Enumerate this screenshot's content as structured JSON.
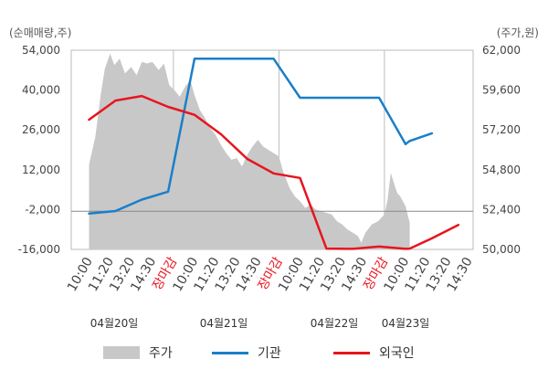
{
  "chart_data": {
    "type": "line",
    "left_unit_label": "(순매매량,주)",
    "right_unit_label": "(주가,원)",
    "y_left": {
      "ticks": [
        "54,000",
        "40,000",
        "26,000",
        "12,000",
        "-2,000",
        "-16,000"
      ],
      "min": -16000,
      "max": 54000
    },
    "y_right": {
      "ticks": [
        "62,000",
        "59,600",
        "57,200",
        "54,800",
        "52,400",
        "50,000"
      ],
      "min": 50000,
      "max": 62000
    },
    "x_labels": [
      "10:00",
      "11:20",
      "13:20",
      "14:30",
      "장마감",
      "10:00",
      "11:20",
      "13:20",
      "14:30",
      "장마감",
      "10:00",
      "11:20",
      "13:20",
      "14:30",
      "장마감",
      "10:00",
      "11:20",
      "13:20",
      "14:30"
    ],
    "day_labels": [
      "04월20일",
      "04월21일",
      "04월22일",
      "04월23일"
    ],
    "zero_line_value": 52300,
    "series": [
      {
        "name": "주가",
        "axis": "right",
        "kind": "area",
        "color": "#c8c8c8",
        "points": [
          [
            0.0,
            55100
          ],
          [
            0.3,
            56800
          ],
          [
            0.55,
            59300
          ],
          [
            0.75,
            60900
          ],
          [
            1.0,
            61800
          ],
          [
            1.2,
            61100
          ],
          [
            1.45,
            61500
          ],
          [
            1.7,
            60600
          ],
          [
            2.0,
            61000
          ],
          [
            2.25,
            60500
          ],
          [
            2.5,
            61300
          ],
          [
            2.75,
            61200
          ],
          [
            3.0,
            61300
          ],
          [
            3.3,
            60800
          ],
          [
            3.55,
            61200
          ],
          [
            3.8,
            59900
          ],
          [
            4.05,
            59600
          ],
          [
            4.3,
            59200
          ],
          [
            4.55,
            59800
          ],
          [
            4.8,
            60200
          ],
          [
            5.0,
            59300
          ],
          [
            5.25,
            58400
          ],
          [
            5.5,
            57900
          ],
          [
            5.75,
            57300
          ],
          [
            6.0,
            56900
          ],
          [
            6.25,
            56300
          ],
          [
            6.5,
            55800
          ],
          [
            6.75,
            55400
          ],
          [
            7.0,
            55500
          ],
          [
            7.25,
            55000
          ],
          [
            7.5,
            55700
          ],
          [
            7.75,
            56200
          ],
          [
            8.0,
            56600
          ],
          [
            8.25,
            56200
          ],
          [
            8.5,
            56000
          ],
          [
            8.75,
            55800
          ],
          [
            9.0,
            55600
          ],
          [
            9.2,
            54700
          ],
          [
            9.5,
            53700
          ],
          [
            9.75,
            53200
          ],
          [
            10.0,
            52900
          ],
          [
            10.25,
            52500
          ],
          [
            10.5,
            52700
          ],
          [
            10.75,
            52400
          ],
          [
            11.0,
            52300
          ],
          [
            11.25,
            52200
          ],
          [
            11.5,
            52100
          ],
          [
            11.75,
            51700
          ],
          [
            12.0,
            51500
          ],
          [
            12.25,
            51200
          ],
          [
            12.5,
            51000
          ],
          [
            12.75,
            50800
          ],
          [
            12.9,
            50400
          ],
          [
            13.1,
            51000
          ],
          [
            13.4,
            51500
          ],
          [
            13.7,
            51700
          ],
          [
            14.0,
            52100
          ],
          [
            14.15,
            53000
          ],
          [
            14.3,
            54600
          ],
          [
            14.45,
            54000
          ],
          [
            14.6,
            53400
          ],
          [
            14.75,
            53200
          ],
          [
            15.0,
            52600
          ],
          [
            15.2,
            51600
          ],
          [
            15.2,
            50000
          ],
          [
            0.0,
            50000
          ]
        ]
      },
      {
        "name": "기관",
        "axis": "left",
        "kind": "line",
        "color": "#1a7fc9",
        "points": [
          [
            0.0,
            -3400
          ],
          [
            1.25,
            -2500
          ],
          [
            2.5,
            1500
          ],
          [
            3.75,
            4300
          ],
          [
            5.0,
            51000
          ],
          [
            6.25,
            51000
          ],
          [
            7.5,
            51000
          ],
          [
            8.75,
            51000
          ],
          [
            10.0,
            37300
          ],
          [
            11.25,
            37300
          ],
          [
            12.5,
            37300
          ],
          [
            13.75,
            37300
          ],
          [
            15.0,
            21000
          ],
          [
            15.2,
            22100
          ],
          [
            16.25,
            24800
          ]
        ]
      },
      {
        "name": "외국인",
        "axis": "left",
        "kind": "line",
        "color": "#e8141e",
        "points": [
          [
            0.0,
            29600
          ],
          [
            1.25,
            36300
          ],
          [
            2.5,
            37900
          ],
          [
            3.75,
            34100
          ],
          [
            5.0,
            31300
          ],
          [
            6.25,
            24500
          ],
          [
            7.5,
            15800
          ],
          [
            8.75,
            10700
          ],
          [
            10.0,
            9100
          ],
          [
            11.25,
            -15700
          ],
          [
            12.5,
            -15800
          ],
          [
            13.75,
            -15000
          ],
          [
            15.0,
            -15800
          ],
          [
            15.2,
            -15700
          ],
          [
            16.25,
            -12100
          ],
          [
            17.5,
            -7400
          ]
        ]
      }
    ],
    "legend": [
      "주가",
      "기관",
      "외국인"
    ]
  }
}
